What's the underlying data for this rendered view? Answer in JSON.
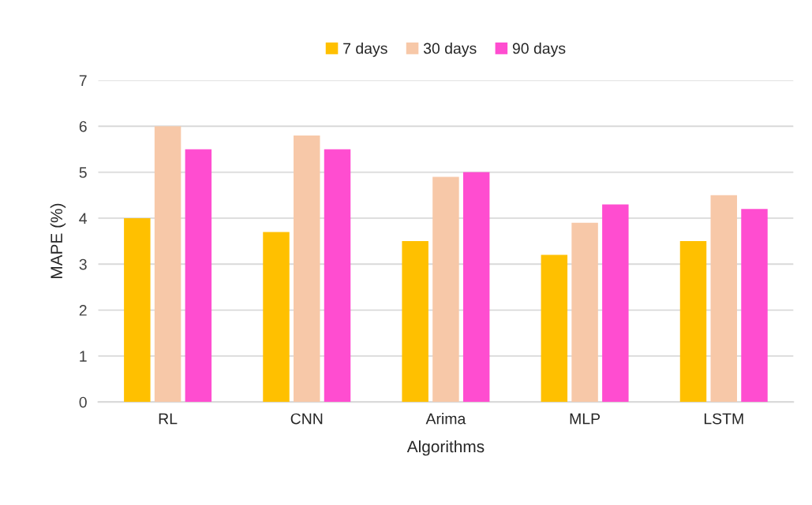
{
  "chart_data": {
    "type": "bar",
    "categories": [
      "RL",
      "CNN",
      "Arima",
      "MLP",
      "LSTM"
    ],
    "series": [
      {
        "name": "7 days",
        "color": "#ffc000",
        "values": [
          4.0,
          3.7,
          3.5,
          3.2,
          3.5
        ]
      },
      {
        "name": "30 days",
        "color": "#f7c8a8",
        "values": [
          6.0,
          5.8,
          4.9,
          3.9,
          4.5
        ]
      },
      {
        "name": "90 days",
        "color": "#ff4dd0",
        "values": [
          5.5,
          5.5,
          5.0,
          4.3,
          4.2
        ]
      }
    ],
    "xlabel": "Algorithms",
    "ylabel": "MAPE (%)",
    "ylim": [
      0,
      7
    ],
    "yticks": [
      0,
      1,
      2,
      3,
      4,
      5,
      6,
      7
    ],
    "grid": "y",
    "legend": "top"
  }
}
